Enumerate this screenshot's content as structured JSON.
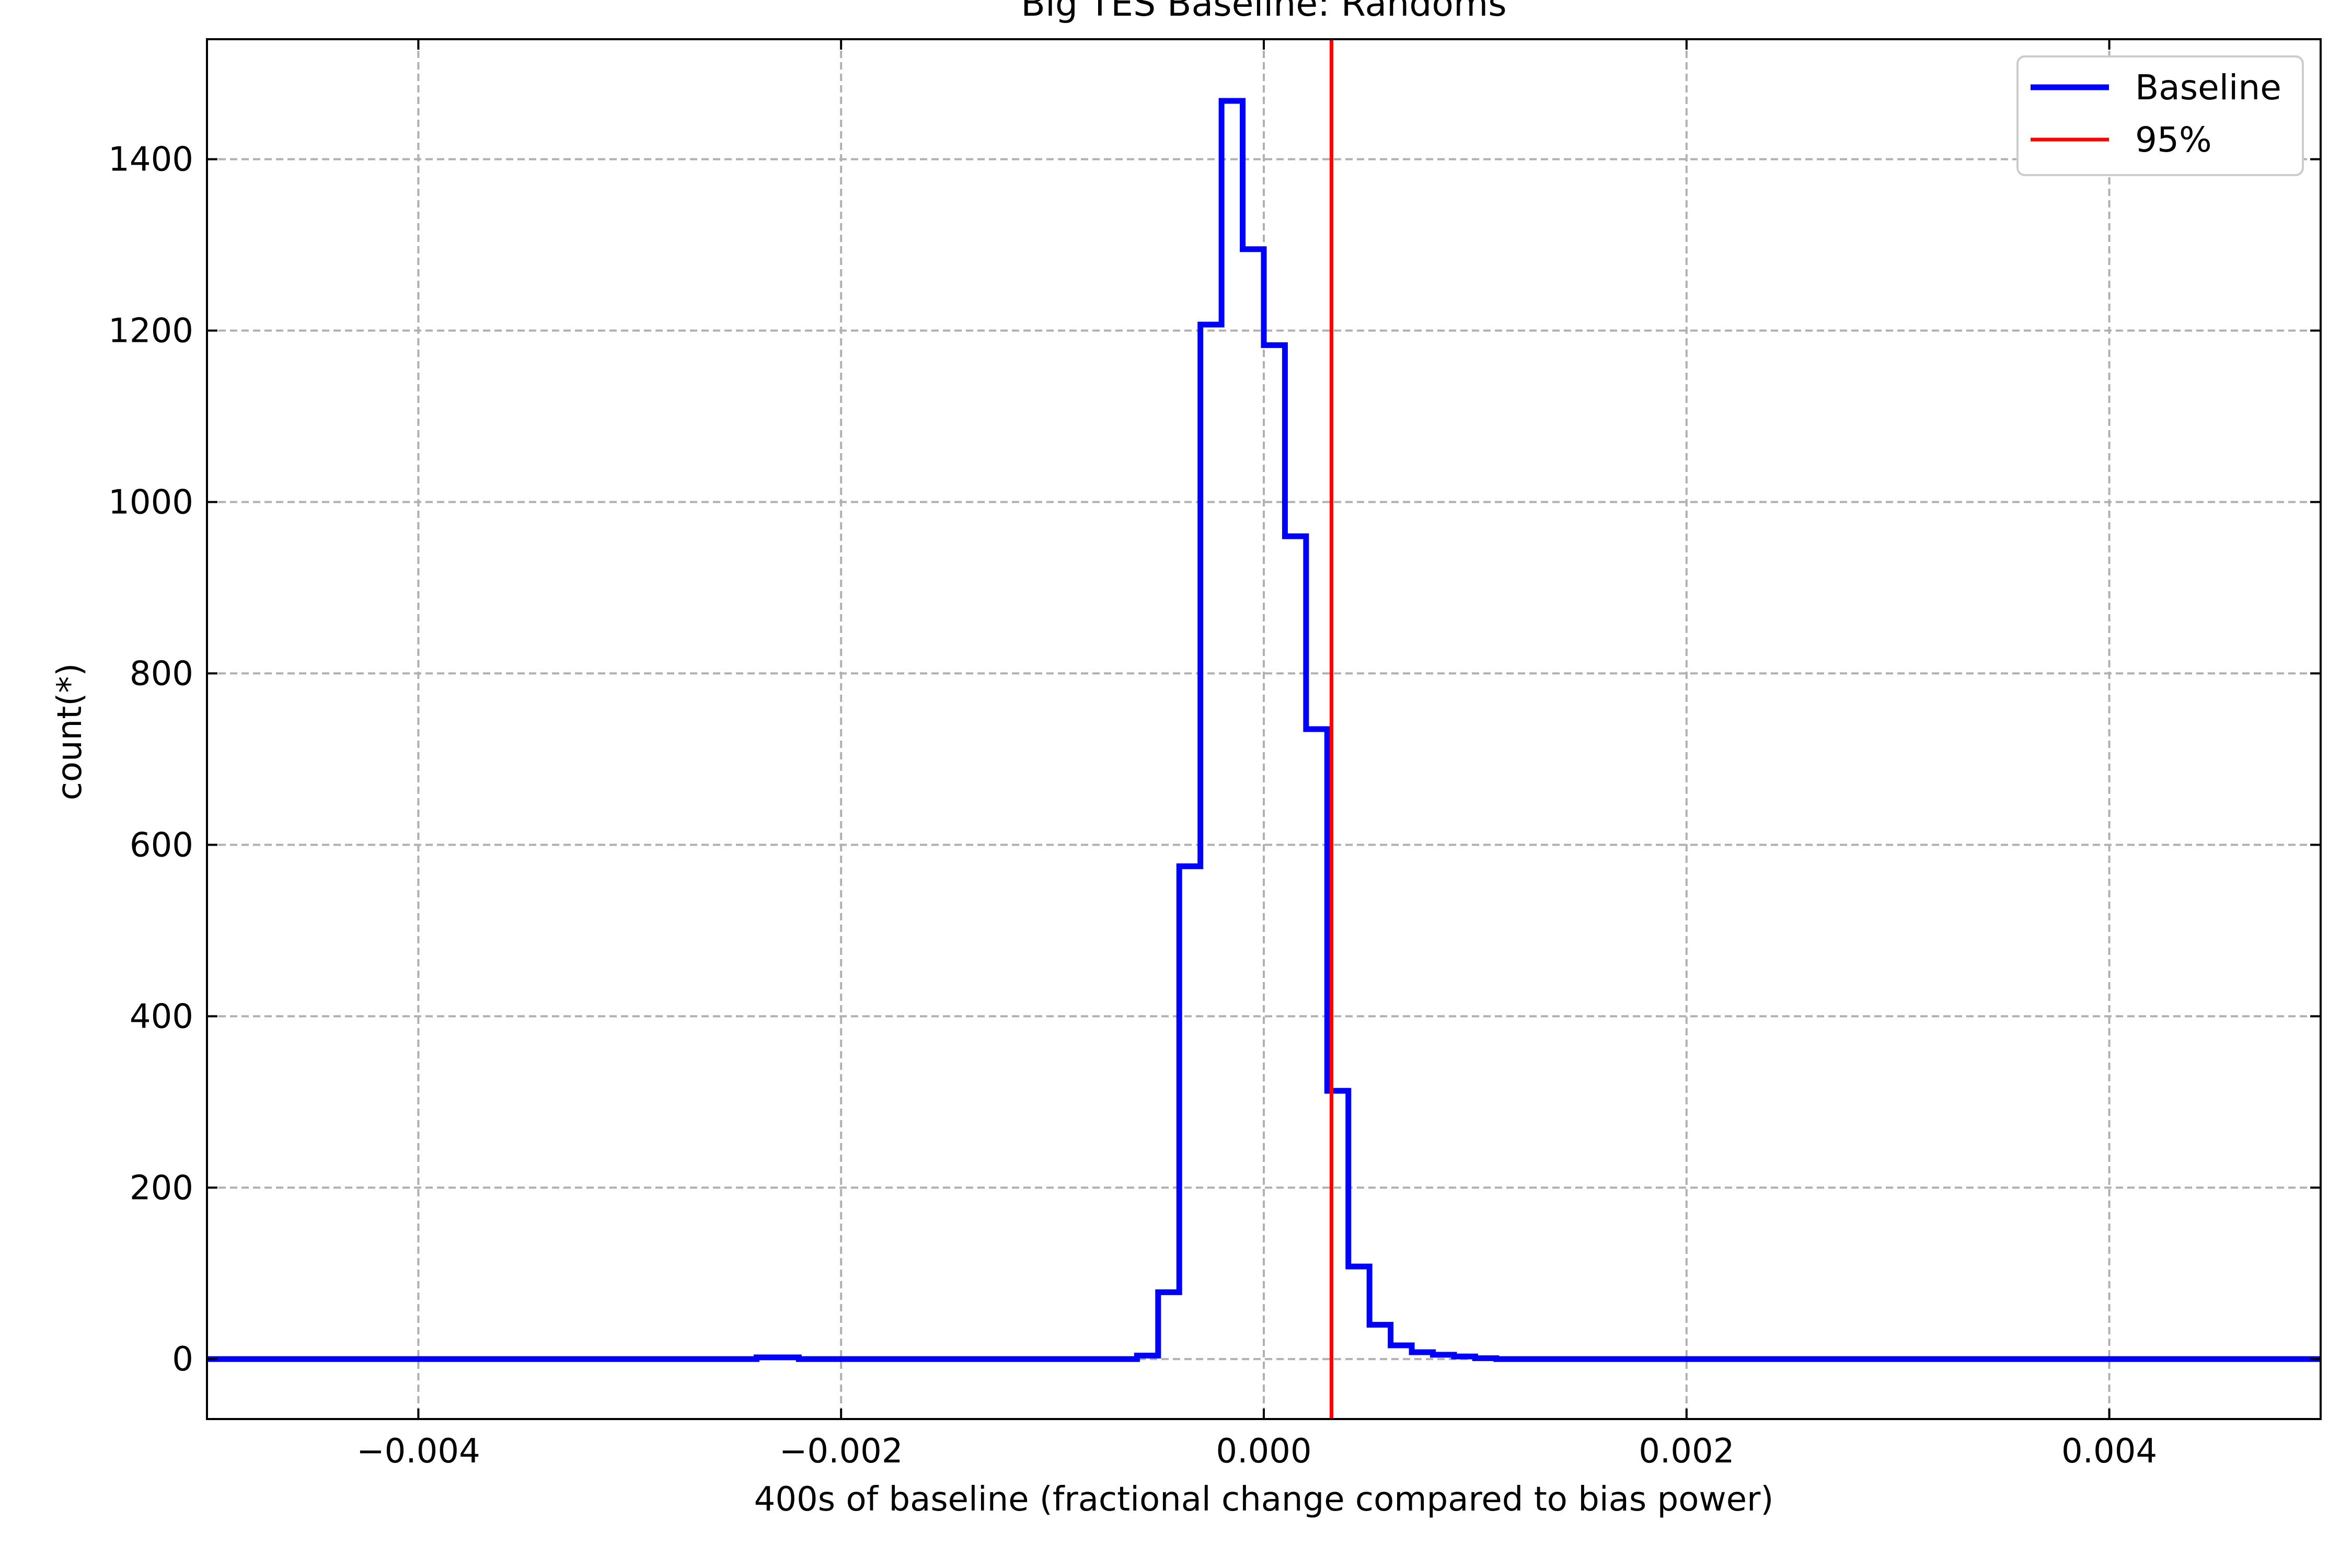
{
  "chart_data": {
    "type": "line",
    "drawstyle": "steps",
    "title": "Big TES Baseline: Randoms",
    "xlabel": "400s of baseline (fractional change compared to bias power)",
    "ylabel": "count(*)",
    "xlim": [
      -0.005,
      0.005
    ],
    "ylim": [
      -70,
      1540
    ],
    "grid": true,
    "legend_position": "top-right",
    "x_ticks": [
      -0.004,
      -0.002,
      0.0,
      0.002,
      0.004
    ],
    "x_tick_labels": [
      "−0.004",
      "−0.002",
      "0.000",
      "0.002",
      "0.004"
    ],
    "y_ticks": [
      0,
      200,
      400,
      600,
      800,
      1000,
      1200,
      1400
    ],
    "y_tick_labels": [
      "0",
      "200",
      "400",
      "600",
      "800",
      "1000",
      "1200",
      "1400"
    ],
    "series": [
      {
        "name": "Baseline",
        "color": "#0000ff",
        "kind": "step-histogram",
        "bin_edges": [
          -0.005,
          -0.0024,
          -0.0022,
          -0.0006,
          -0.0005,
          -0.0004,
          -0.0003,
          -0.0002,
          -0.0001,
          0.0,
          0.0001,
          0.0002,
          0.0003,
          0.0004,
          0.0005,
          0.0006,
          0.0007,
          0.0008,
          0.0009,
          0.001,
          0.0011,
          0.005
        ],
        "counts": [
          0,
          2,
          0,
          4,
          78,
          575,
          1207,
          1468,
          1295,
          1183,
          960,
          735,
          313,
          108,
          40,
          16,
          8,
          5,
          3,
          1,
          0
        ]
      },
      {
        "name": "95%",
        "color": "#ff0000",
        "kind": "vertical-line",
        "x": 0.00032
      }
    ]
  }
}
